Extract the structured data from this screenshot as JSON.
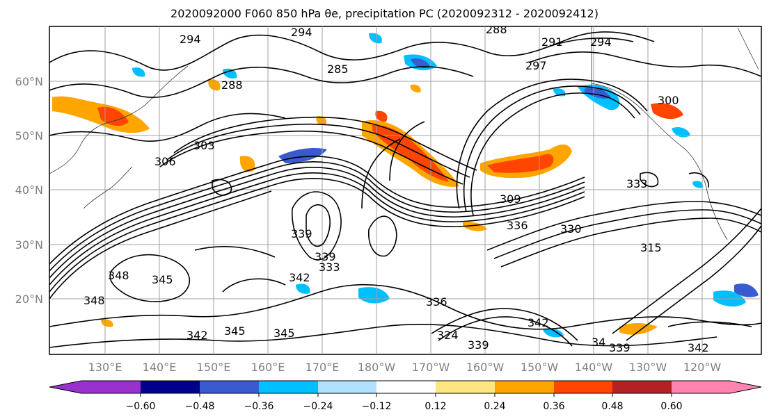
{
  "title": {
    "text": "2020092000 F060 850 hPa θe, precipitation PC (2020092312 - 2020092412)"
  },
  "axes": {
    "lon_labels": [
      "130°E",
      "140°E",
      "150°E",
      "160°E",
      "170°E",
      "180°W",
      "170°W",
      "160°W",
      "150°W",
      "140°W",
      "130°W",
      "120°W"
    ],
    "lat_labels": [
      "60°N",
      "50°N",
      "40°N",
      "30°N",
      "20°N"
    ]
  },
  "colorbar": {
    "levels": [
      "−0.60",
      "−0.48",
      "−0.36",
      "−0.24",
      "−0.12",
      "0.12",
      "0.24",
      "0.36",
      "0.48",
      "0.60"
    ],
    "colors": [
      "#9932cc",
      "#00008b",
      "#3a5bd0",
      "#00bfff",
      "#b0e0ff",
      "#ffffff",
      "#ffe680",
      "#ffa500",
      "#ff4500",
      "#b22222",
      "#ff85b0"
    ]
  },
  "contour_labels": [
    "294",
    "294",
    "288",
    "291",
    "294",
    "297",
    "285",
    "300",
    "288",
    "306",
    "303",
    "309",
    "339",
    "339",
    "333",
    "342",
    "348",
    "345",
    "348",
    "342",
    "345",
    "345",
    "336",
    "324",
    "339",
    "342",
    "34",
    "339",
    "342",
    "336",
    "333",
    "315",
    "330"
  ],
  "colors": {
    "grid": "#a0a0a0",
    "contour": "#000000",
    "warm": "#ffa500",
    "hot": "#ff4500",
    "cold": "#00bfff",
    "deep_cold": "#3a5bd0"
  }
}
